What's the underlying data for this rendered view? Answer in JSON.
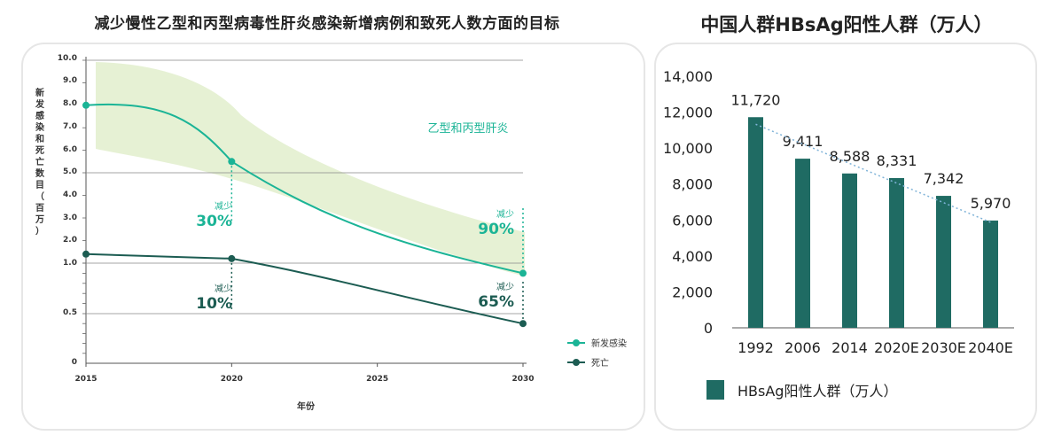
{
  "left_title": "减少慢性乙型和丙型病毒性肝炎感染新增病例和致死人数方面的目标",
  "right_title": "中国人群HBsAg阳性人群（万人）",
  "chart_data": [
    {
      "type": "line",
      "title": "减少慢性乙型和丙型病毒性肝炎感染新增病例和致死人数方面的目标",
      "xlabel": "年份",
      "ylabel": "新发感染和死亡数目（百万）",
      "x_ticks": [
        "2015",
        "2020",
        "2025",
        "2030"
      ],
      "y_ticks": [
        "10.0",
        "9.0",
        "8.0",
        "7.0",
        "6.0",
        "5.0",
        "4.0",
        "3.0",
        "2.0",
        "1.0",
        "0.5",
        "0"
      ],
      "band_label": "乙型和丙型肝炎",
      "series": [
        {
          "name": "新发感染",
          "color": "#1bb496",
          "x": [
            2015,
            2020,
            2030
          ],
          "y": [
            8.0,
            5.5,
            0.9
          ]
        },
        {
          "name": "死亡",
          "color": "#1c5c52",
          "x": [
            2015,
            2020,
            2030
          ],
          "y": [
            1.4,
            1.2,
            0.4
          ]
        }
      ],
      "annotations": [
        {
          "label": "减少",
          "value": "30%"
        },
        {
          "label": "减少",
          "value": "10%"
        },
        {
          "label": "减少",
          "value": "90%"
        },
        {
          "label": "减少",
          "value": "65%"
        }
      ],
      "legend_position": "bottom-right",
      "grid": true
    },
    {
      "type": "bar",
      "title": "中国人群HBsAg阳性人群（万人）",
      "categories": [
        "1992",
        "2006",
        "2014",
        "2020E",
        "2030E",
        "2040E"
      ],
      "series": [
        {
          "name": "HBsAg阳性人群（万人）",
          "values": [
            11720,
            9411,
            8588,
            8331,
            7342,
            5970
          ],
          "color": "#1f6b63"
        }
      ],
      "value_labels": [
        "11,720",
        "9,411",
        "8,588",
        "8,331",
        "7,342",
        "5,970"
      ],
      "y_ticks": [
        "14,000",
        "12,000",
        "10,000",
        "8,000",
        "6,000",
        "4,000",
        "2,000",
        "0"
      ],
      "ylim": [
        0,
        14000
      ],
      "trendline": true,
      "legend_position": "bottom"
    }
  ]
}
